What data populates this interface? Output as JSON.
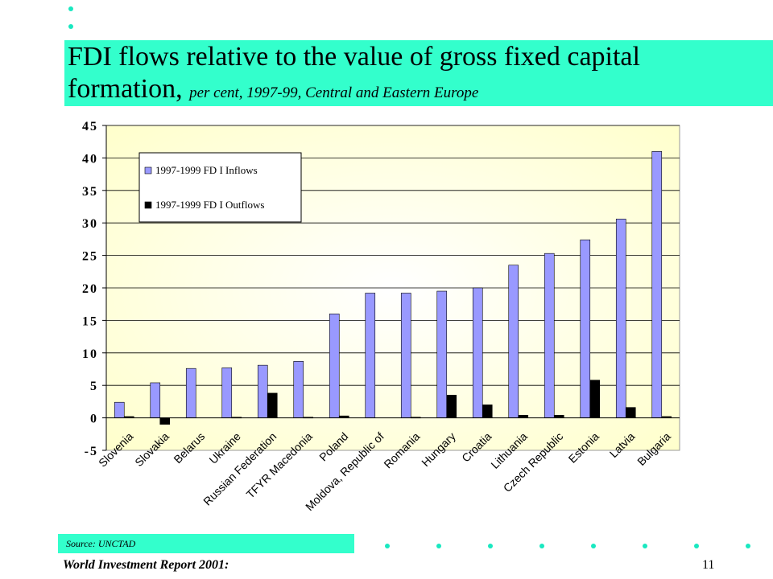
{
  "header": {
    "title_line1": "FDI flows relative to the value of gross fixed capital",
    "title_line2_main": "formation,",
    "title_line2_sub": "per cent, 1997-99, Central and Eastern Europe"
  },
  "footer": {
    "source": "Source: UNCTAD",
    "report": "World Investment Report 2001:",
    "page_number": "11"
  },
  "colors": {
    "accent_band": "#33ffcc",
    "dots": "#19e8c0",
    "inflows": "#9999ff",
    "outflows": "#000000",
    "plot_background": "#ffffcc"
  },
  "chart_data": {
    "type": "bar",
    "title": "",
    "xlabel": "",
    "ylabel": "",
    "ylim": [
      -5,
      45
    ],
    "yticks": [
      -5,
      0,
      5,
      10,
      15,
      20,
      25,
      30,
      35,
      40,
      45
    ],
    "ytick_labels": [
      "-5",
      "0",
      "5",
      "10",
      "15",
      "20",
      "25",
      "30",
      "35",
      "40",
      "45"
    ],
    "grid": true,
    "legend_position": "top-left",
    "categories": [
      "Slovenia",
      "Slovakia",
      "Belarus",
      "Ukraine",
      "Russian Federation",
      "TFYR Macedonia",
      "Poland",
      "Moldova, Republic of",
      "Romania",
      "Hungary",
      "Croatia",
      "Lithuania",
      "Czech Republic",
      "Estonia",
      "Latvia",
      "Bulgaria"
    ],
    "series": [
      {
        "name": "1997-1999 FD I Inflows",
        "values": [
          2.4,
          5.4,
          7.6,
          7.7,
          8.1,
          8.7,
          16.0,
          19.2,
          19.2,
          19.5,
          20.0,
          23.5,
          25.3,
          27.4,
          30.6,
          41.0
        ]
      },
      {
        "name": "1997-1999 FD I Outflows",
        "values": [
          0.2,
          -1.0,
          0.0,
          0.1,
          3.8,
          0.1,
          0.3,
          0.0,
          0.1,
          3.5,
          2.0,
          0.4,
          0.4,
          5.8,
          1.6,
          0.2
        ]
      }
    ]
  }
}
